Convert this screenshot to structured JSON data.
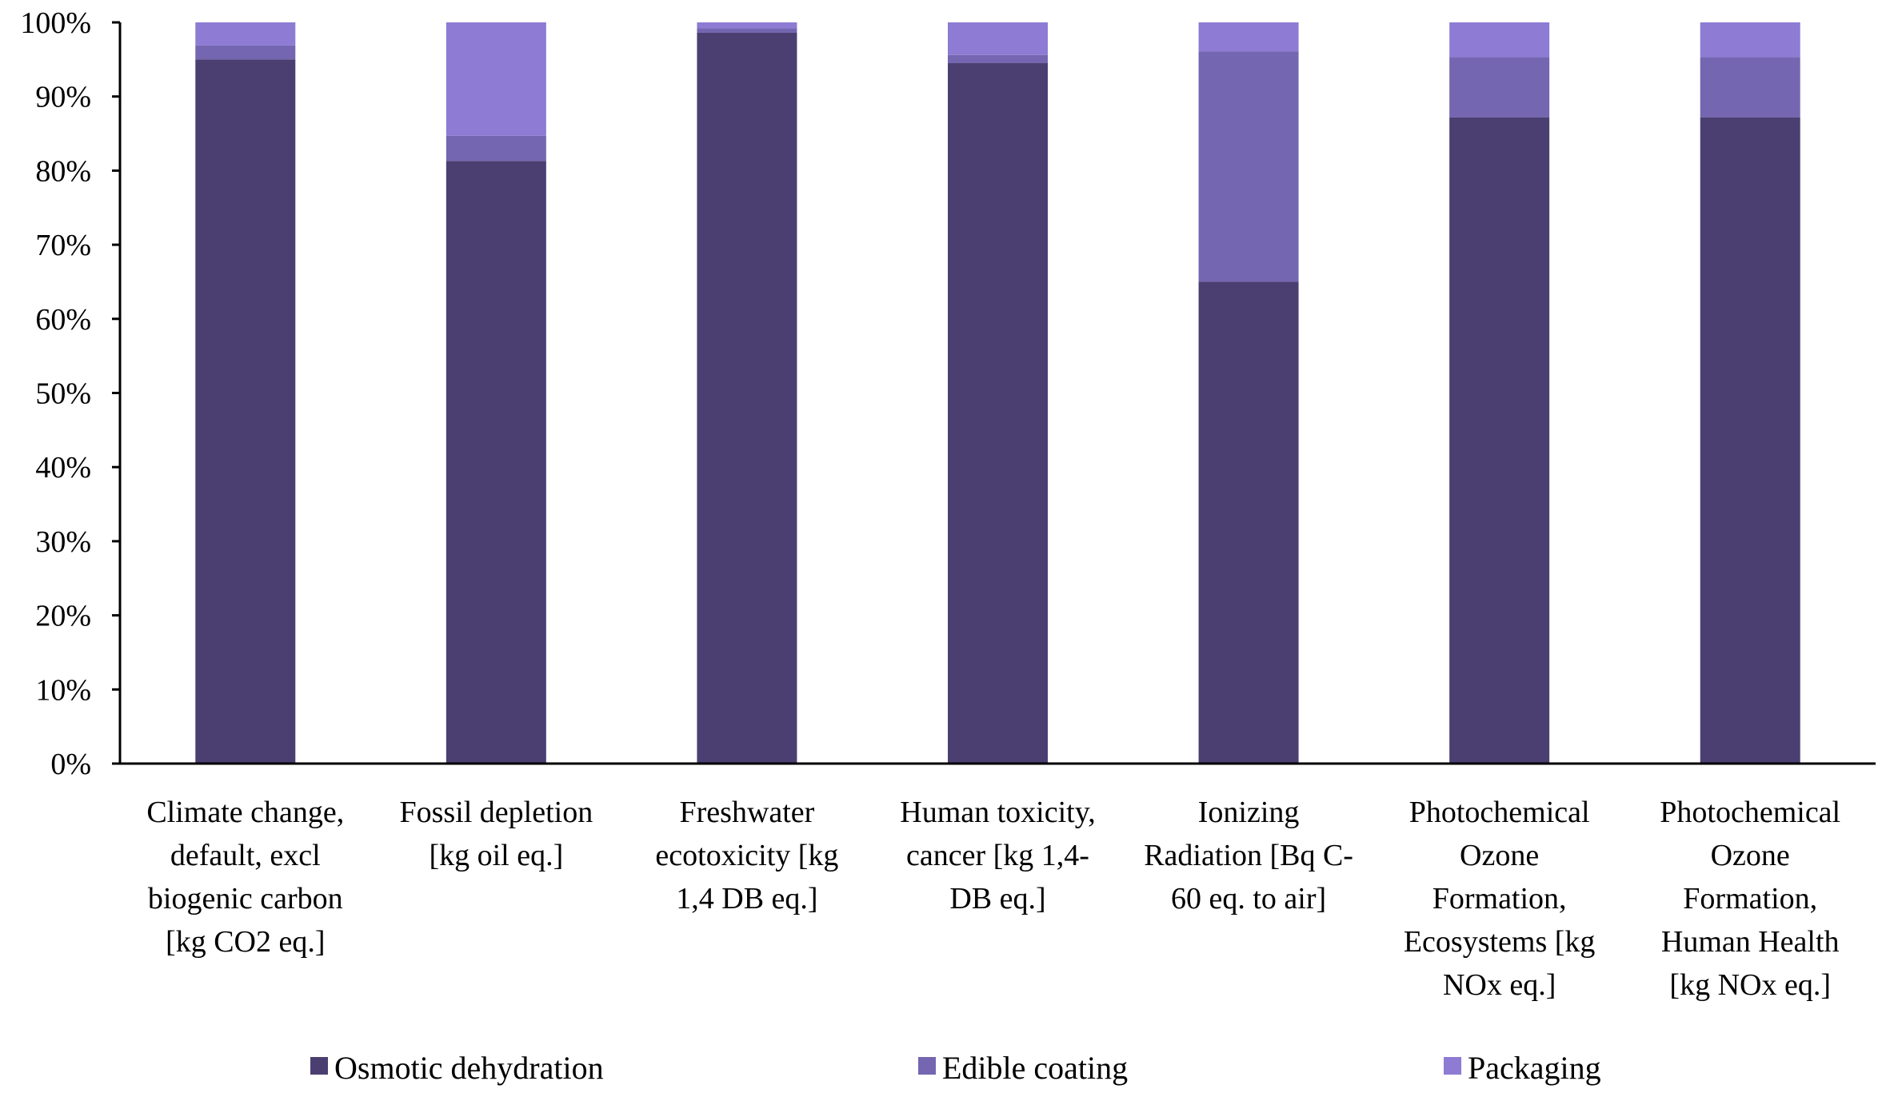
{
  "chart_data": {
    "type": "bar",
    "stacked": true,
    "title": "",
    "xlabel": "",
    "ylabel": "",
    "ylim": [
      0,
      100
    ],
    "yticks": [
      "0%",
      "10%",
      "20%",
      "30%",
      "40%",
      "50%",
      "60%",
      "70%",
      "80%",
      "90%",
      "100%"
    ],
    "grid": false,
    "legend_position": "bottom",
    "categories": [
      [
        "Climate change,",
        "default, excl",
        "biogenic carbon",
        "[kg CO2 eq.]"
      ],
      [
        "Fossil depletion",
        "[kg oil eq.]"
      ],
      [
        "Freshwater",
        "ecotoxicity [kg",
        "1,4 DB eq.]"
      ],
      [
        "Human toxicity,",
        "cancer [kg 1,4-",
        "DB eq.]"
      ],
      [
        "Ionizing",
        "Radiation [Bq C-",
        "60 eq. to air]"
      ],
      [
        "Photochemical",
        "Ozone",
        "Formation,",
        "Ecosystems [kg",
        "NOx eq.]"
      ],
      [
        "Photochemical",
        "Ozone",
        "Formation,",
        "Human Health",
        "[kg NOx eq.]"
      ]
    ],
    "series": [
      {
        "name": "Osmotic dehydration",
        "color": "#4b3f72",
        "values": [
          95,
          81.3,
          98.6,
          94.5,
          65,
          87.2,
          87.2
        ]
      },
      {
        "name": "Edible coating",
        "color": "#7466b0",
        "values": [
          1.9,
          3.4,
          0.6,
          1.1,
          31.1,
          8.1,
          8.1
        ]
      },
      {
        "name": "Packaging",
        "color": "#8e7bd3",
        "values": [
          3.1,
          15.3,
          0.8,
          4.4,
          3.9,
          4.7,
          4.7
        ]
      }
    ]
  }
}
